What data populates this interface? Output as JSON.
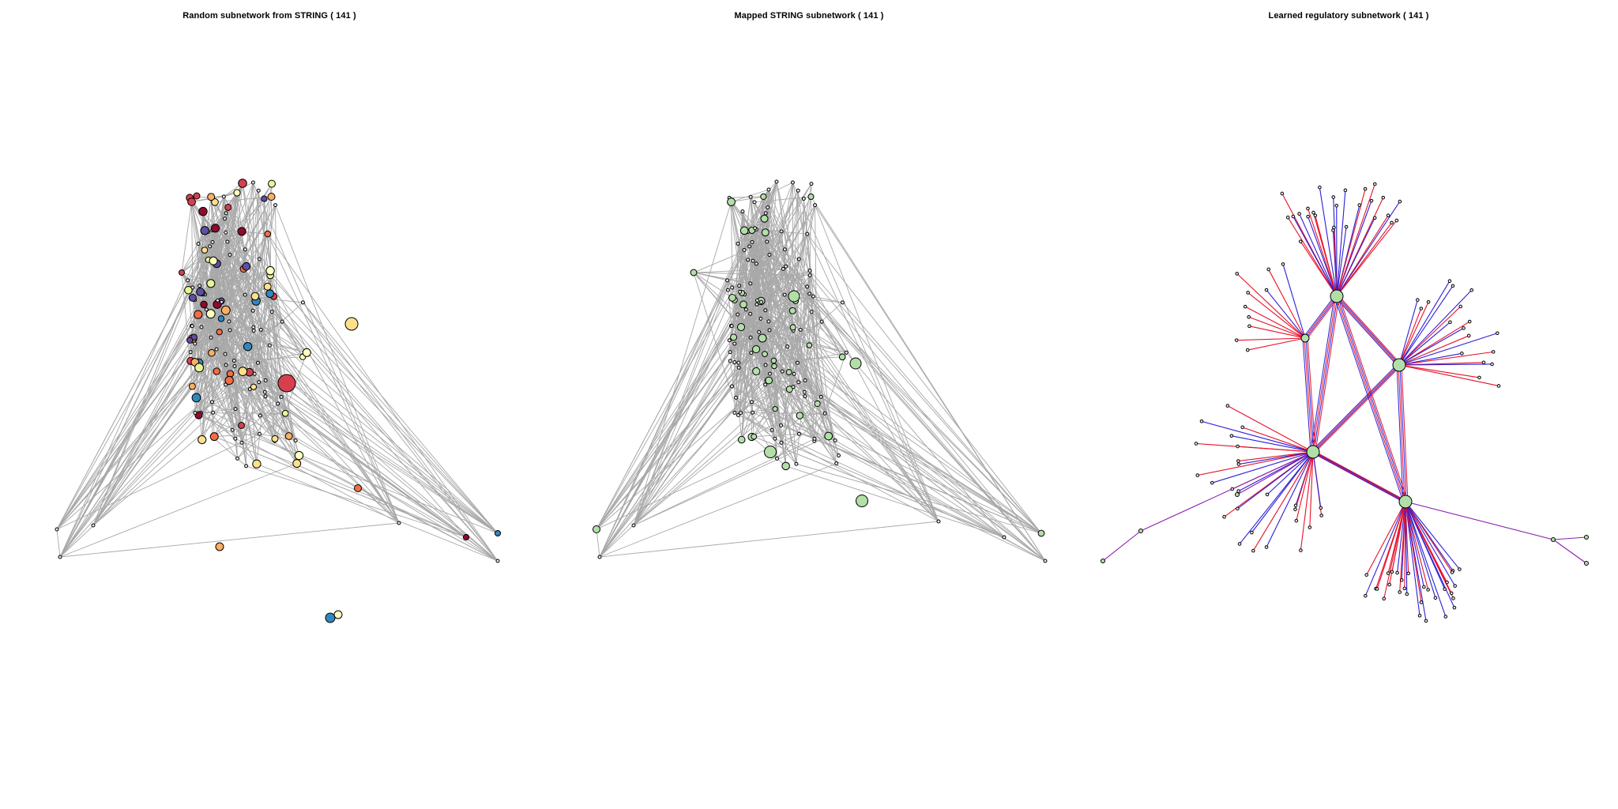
{
  "panels": [
    {
      "title": "Random subnetwork from STRING ( 141 )",
      "style": "random"
    },
    {
      "title": "Mapped STRING subnetwork ( 141 )",
      "style": "mapped"
    },
    {
      "title": "Learned regulatory subnetwork ( 141 )",
      "style": "learned"
    }
  ],
  "colors": {
    "edge_gray": "#a8a8a8",
    "node_green": "#b2dfa8",
    "node_small": "#e8e8e8",
    "reg_red": "#e8102a",
    "reg_blue": "#2b1fd8",
    "palette_random": [
      "#8e0c2e",
      "#d6404e",
      "#f46d43",
      "#fdae61",
      "#fee08b",
      "#ffffbf",
      "#e6f598",
      "#3288bd",
      "#5e4fa2"
    ]
  }
}
